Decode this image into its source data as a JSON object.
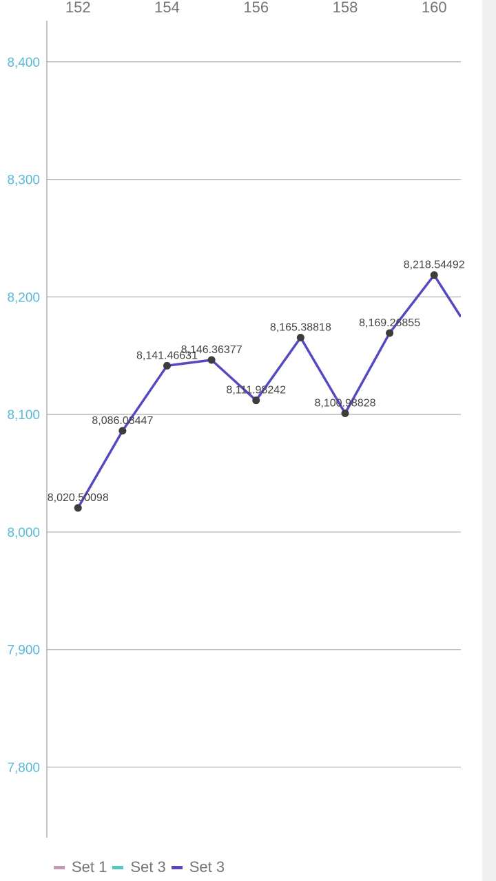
{
  "chart_data": {
    "type": "line",
    "title": "",
    "xlabel": "",
    "ylabel": "",
    "x": [
      152,
      153,
      154,
      155,
      156,
      157,
      158,
      159,
      160,
      160.6
    ],
    "x_ticks": [
      "152",
      "154",
      "156",
      "158",
      "160"
    ],
    "x_tick_values": [
      152,
      154,
      156,
      158,
      160
    ],
    "xlim": [
      151.3,
      160.6
    ],
    "ylim": [
      7740,
      8435
    ],
    "y_ticks": [
      "7,800",
      "7,900",
      "8,000",
      "8,100",
      "8,200",
      "8,300",
      "8,400"
    ],
    "y_tick_values": [
      7800,
      7900,
      8000,
      8100,
      8200,
      8300,
      8400
    ],
    "grid": true,
    "legend_position": "bottom-left",
    "series": [
      {
        "name": "Set 3",
        "color": "#5549c2",
        "values": [
          8020.50098,
          8086.08447,
          8141.46631,
          8146.36377,
          8111.98242,
          8165.38818,
          8100.98828,
          8169.26855,
          8218.54492,
          8183
        ],
        "labels": [
          "8,020.50098",
          "8,086.08447",
          "8,141.46631",
          "8,146.36377",
          "8,111.98242",
          "8,165.38818",
          "8,100.98828",
          "8,169.26855",
          "8,218.54492",
          ""
        ]
      }
    ],
    "legend": [
      {
        "label": "Set 1",
        "color": "#c497b5"
      },
      {
        "label": "Set 3",
        "color": "#4fc8c3"
      },
      {
        "label": "Set 3",
        "color": "#5549c2"
      }
    ],
    "colors": {
      "y_tick": "#5ab8d8",
      "x_tick": "#757575",
      "grid": "#b0b0b0",
      "axis": "#9e9e9e",
      "point": "#3d3d3d",
      "data_label": "#444444"
    }
  }
}
